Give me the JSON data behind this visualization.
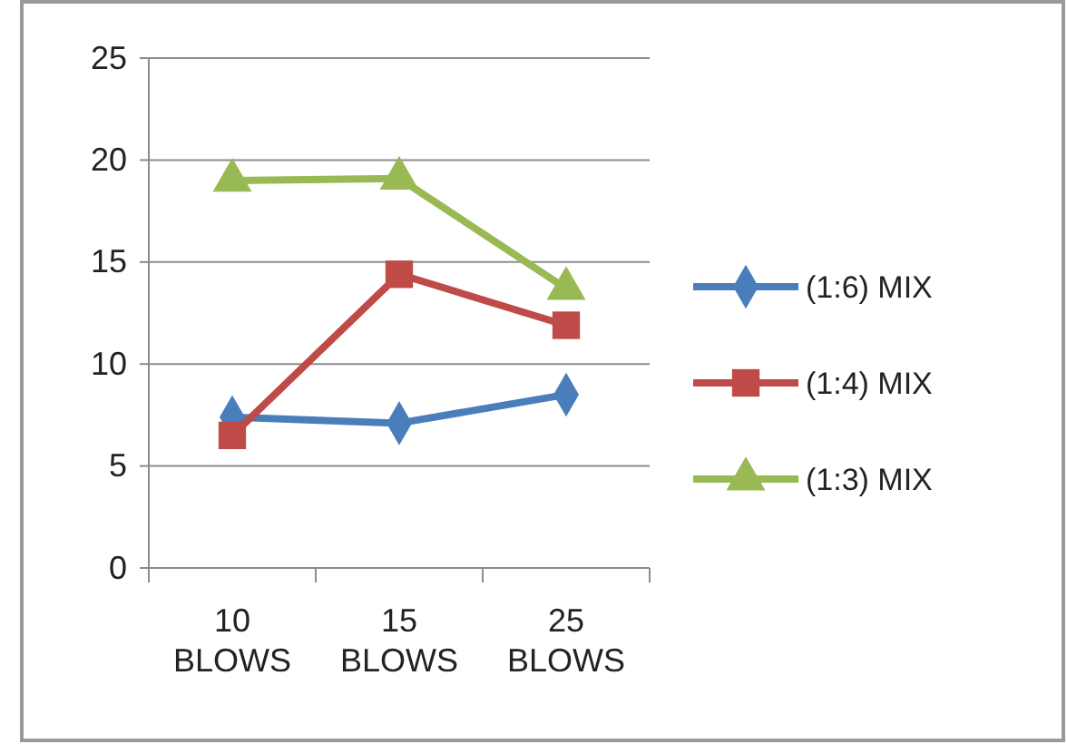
{
  "chart_data": {
    "type": "line",
    "categories": [
      "10 BLOWS",
      "15 BLOWS",
      "25 BLOWS"
    ],
    "series": [
      {
        "name": "(1:6) MIX",
        "color": "#4a7ebb",
        "values": [
          7.4,
          7.1,
          8.5
        ],
        "marker": "diamond"
      },
      {
        "name": "(1:4) MIX",
        "color": "#be4b48",
        "values": [
          6.5,
          14.4,
          11.9
        ],
        "marker": "square"
      },
      {
        "name": "(1:3) MIX",
        "color": "#98b954",
        "values": [
          19.0,
          19.1,
          13.7
        ],
        "marker": "triangle"
      }
    ],
    "ylim": [
      0,
      25
    ],
    "yticks": [
      0,
      5,
      10,
      15,
      20,
      25
    ],
    "grid": "y",
    "legend": "right"
  }
}
